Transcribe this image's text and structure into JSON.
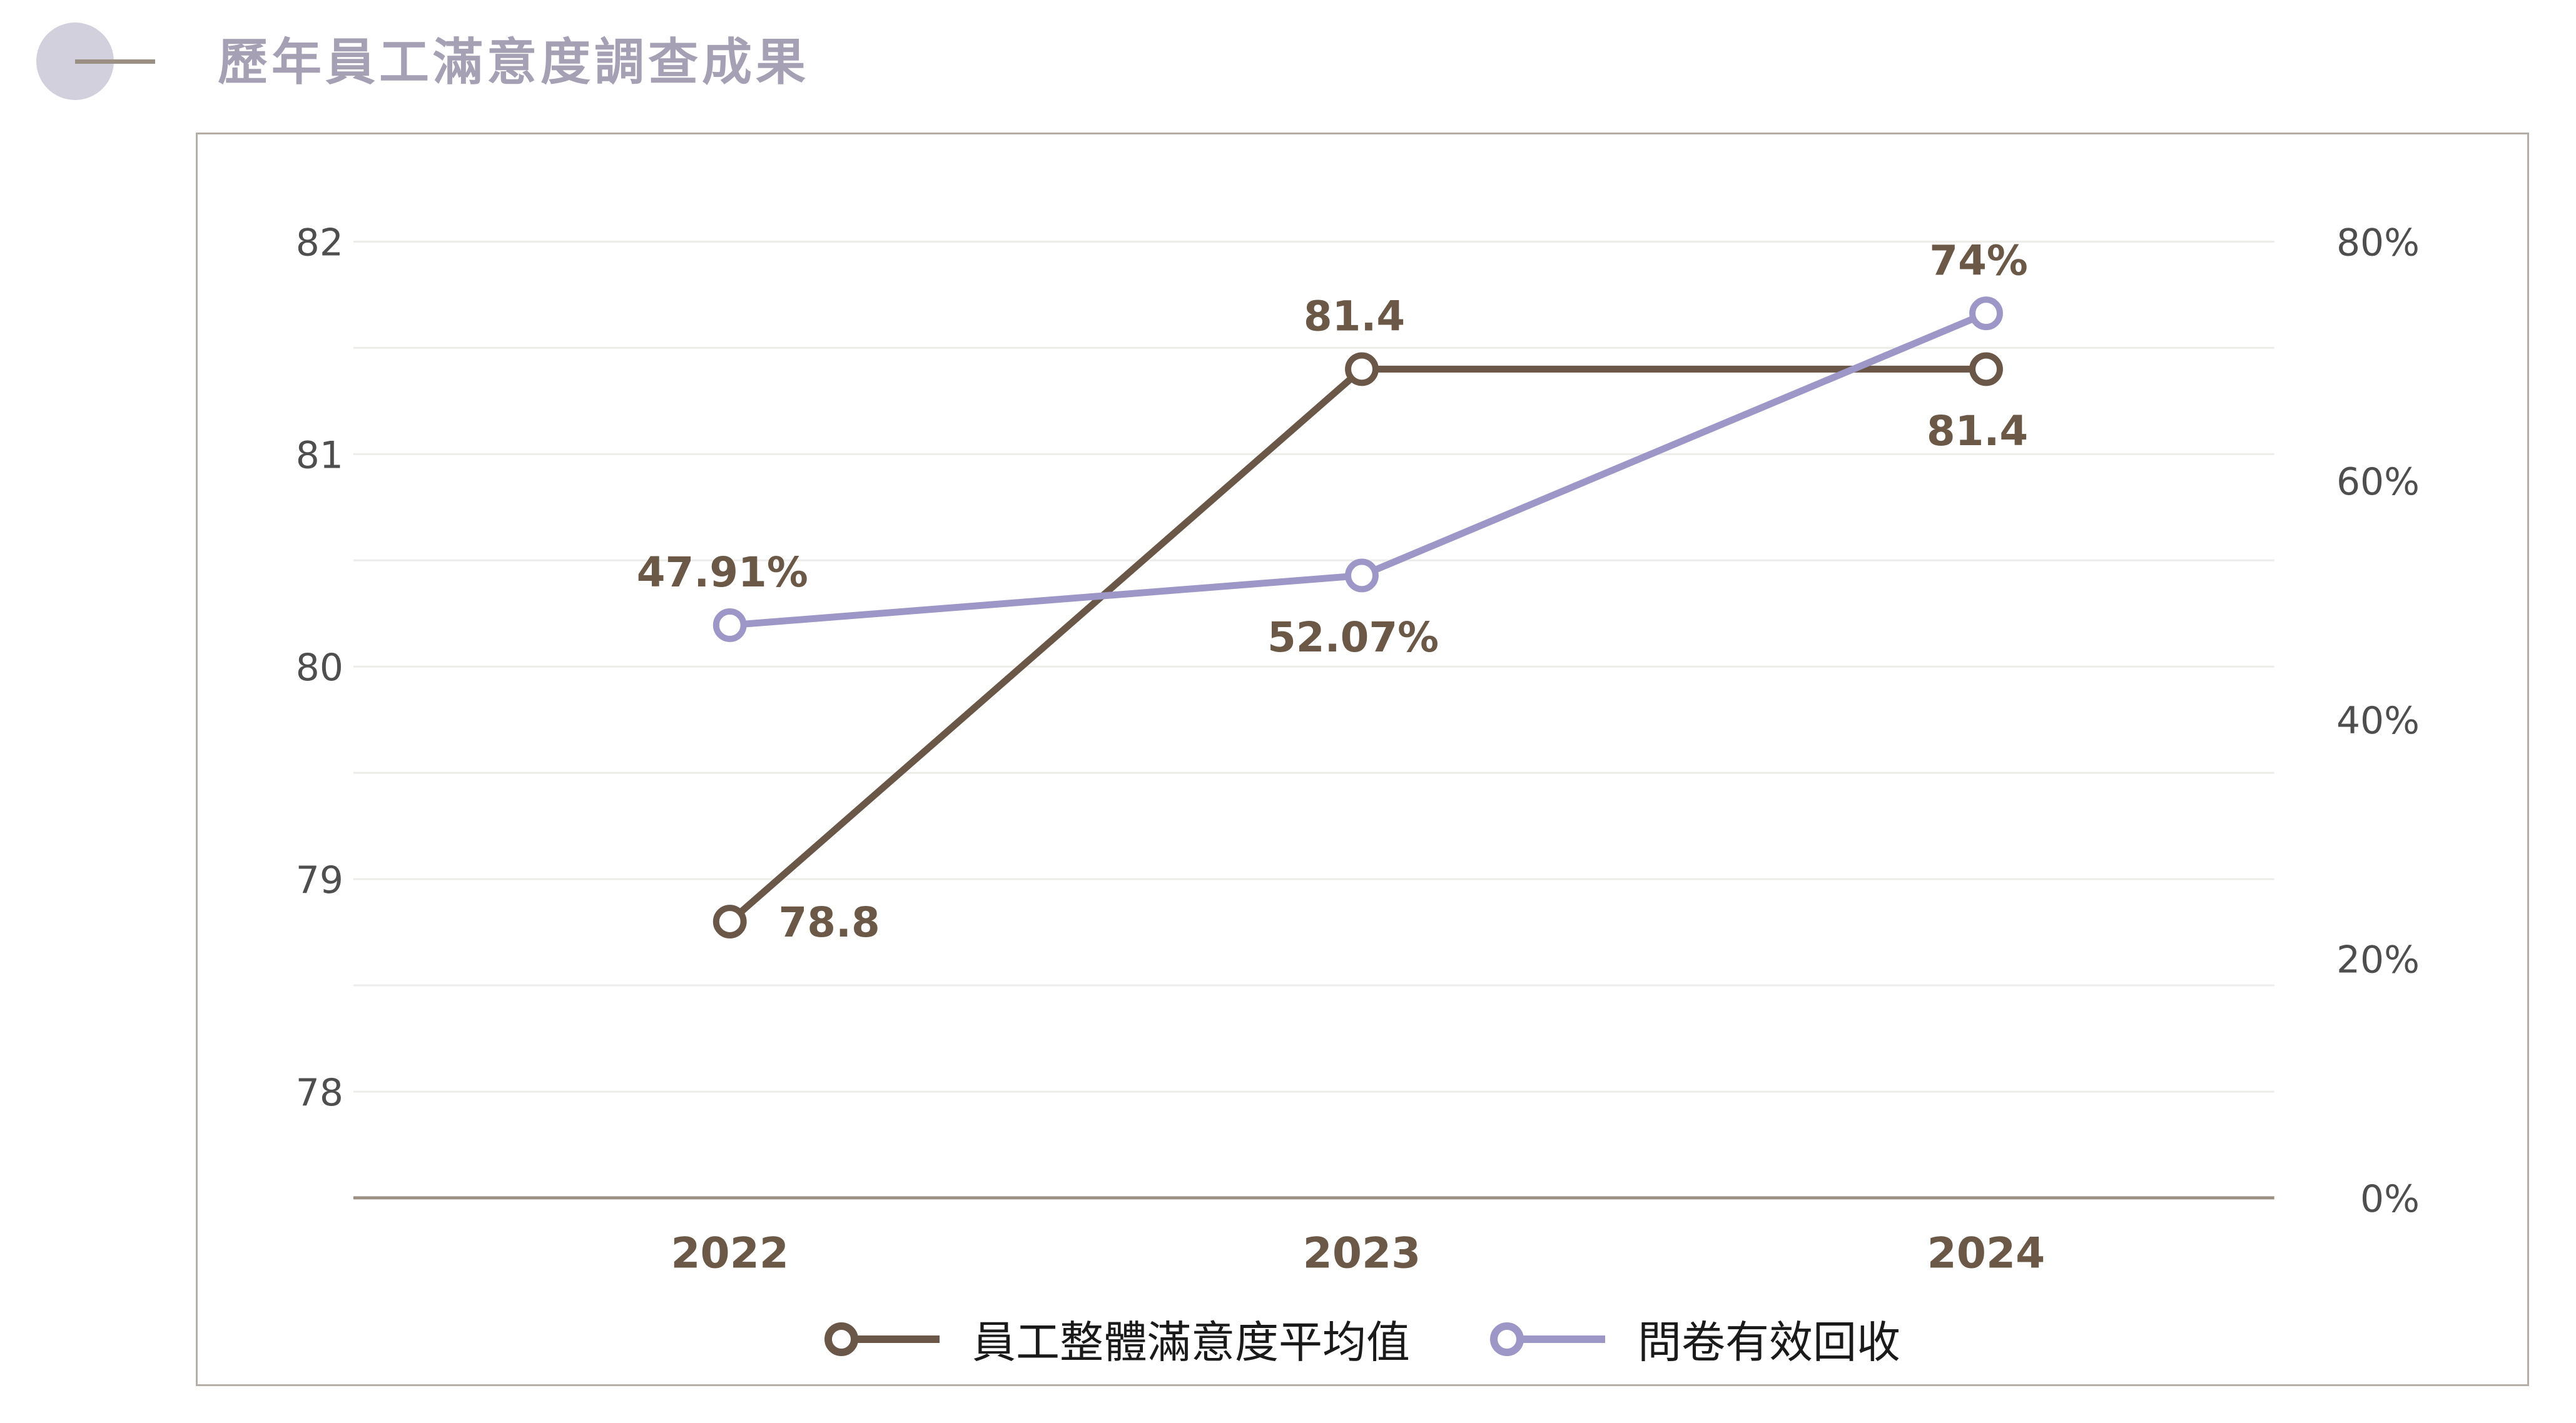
{
  "header": {
    "title": "歷年員工滿意度調查成果"
  },
  "chart_data": {
    "type": "line",
    "title": "歷年員工滿意度調查成果",
    "categories": [
      "2022",
      "2023",
      "2024"
    ],
    "series": [
      {
        "name": "員工整體滿意度平均值",
        "axis": "left",
        "color": "#6b5748",
        "values": [
          78.8,
          81.4,
          81.4
        ],
        "data_labels": [
          "78.8",
          "81.4",
          "81.4"
        ],
        "label_positions": [
          "right",
          "above",
          "below"
        ]
      },
      {
        "name": "問卷有效回收",
        "axis": "right",
        "color": "#9d97c8",
        "values": [
          47.91,
          52.07,
          74
        ],
        "data_labels": [
          "47.91%",
          "52.07%",
          "74%"
        ],
        "label_positions": [
          "above",
          "below",
          "above"
        ]
      }
    ],
    "left_axis": {
      "min": 77.5,
      "max": 82,
      "grid_step": 0.5,
      "tick_values": [
        82,
        81,
        80,
        79,
        78
      ],
      "tick_labels": [
        "82",
        "81",
        "80",
        "79",
        "78"
      ]
    },
    "right_axis": {
      "min": 0,
      "max": 80,
      "tick_values": [
        80,
        60,
        40,
        20,
        0
      ],
      "tick_labels": [
        "80%",
        "60%",
        "40%",
        "20%",
        "0%"
      ]
    },
    "grid": true,
    "legend_position": "bottom",
    "colors": {
      "gridline": "#eeece9",
      "axis_line": "#9c9085",
      "tick_label": "#4e4e4e",
      "category_label": "#6b5847",
      "data_label": "#6b5847"
    }
  },
  "legend": {
    "items": [
      {
        "label": "員工整體滿意度平均值",
        "color": "#6b5748"
      },
      {
        "label": "問卷有效回收",
        "color": "#9d97c8"
      }
    ]
  }
}
